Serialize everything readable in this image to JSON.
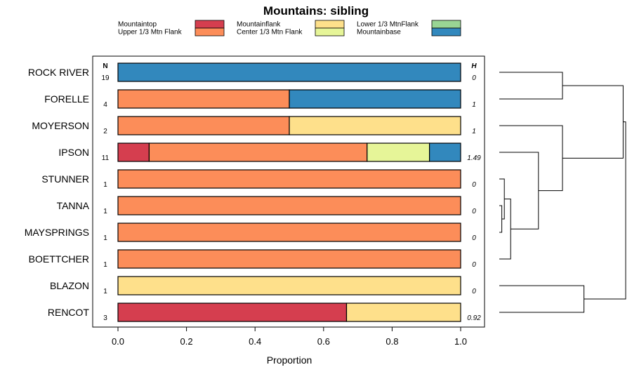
{
  "chart_data": {
    "type": "bar",
    "stacked": true,
    "orientation": "horizontal",
    "title": "Mountains: sibling",
    "xlabel": "Proportion",
    "xlim": [
      0,
      1
    ],
    "xticks": [
      0.0,
      0.2,
      0.4,
      0.6,
      0.8,
      1.0
    ],
    "xtick_labels": [
      "0.0",
      "0.2",
      "0.4",
      "0.6",
      "0.8",
      "1.0"
    ],
    "n_header": "N",
    "h_header": "H",
    "legend_position": "top",
    "series": [
      {
        "name": "Mountaintop",
        "color": "#d53e4f"
      },
      {
        "name": "Upper 1/3 Mtn Flank",
        "color": "#fc8d59"
      },
      {
        "name": "Mountainflank",
        "color": "#fee08b"
      },
      {
        "name": "Center 1/3 Mtn Flank",
        "color": "#e6f598"
      },
      {
        "name": "Lower 1/3 MtnFlank",
        "color": "#99d594"
      },
      {
        "name": "Mountainbase",
        "color": "#3288bd"
      }
    ],
    "legend_order": [
      "Mountaintop",
      "Upper 1/3 Mtn Flank",
      "Mountainflank",
      "Center 1/3 Mtn Flank",
      "Lower 1/3 MtnFlank",
      "Mountainbase"
    ],
    "rows": [
      {
        "name": "ROCK RIVER",
        "n": "19",
        "h": "0",
        "segments": [
          {
            "series": "Mountainbase",
            "value": 1.0
          }
        ]
      },
      {
        "name": "FORELLE",
        "n": "4",
        "h": "1",
        "segments": [
          {
            "series": "Upper 1/3 Mtn Flank",
            "value": 0.5
          },
          {
            "series": "Mountainbase",
            "value": 0.5
          }
        ]
      },
      {
        "name": "MOYERSON",
        "n": "2",
        "h": "1",
        "segments": [
          {
            "series": "Upper 1/3 Mtn Flank",
            "value": 0.5
          },
          {
            "series": "Mountainflank",
            "value": 0.5
          }
        ]
      },
      {
        "name": "IPSON",
        "n": "11",
        "h": "1.49",
        "segments": [
          {
            "series": "Mountaintop",
            "value": 0.091
          },
          {
            "series": "Upper 1/3 Mtn Flank",
            "value": 0.636
          },
          {
            "series": "Center 1/3 Mtn Flank",
            "value": 0.182
          },
          {
            "series": "Mountainbase",
            "value": 0.091
          }
        ]
      },
      {
        "name": "STUNNER",
        "n": "1",
        "h": "0",
        "segments": [
          {
            "series": "Upper 1/3 Mtn Flank",
            "value": 1.0
          }
        ]
      },
      {
        "name": "TANNA",
        "n": "1",
        "h": "0",
        "segments": [
          {
            "series": "Upper 1/3 Mtn Flank",
            "value": 1.0
          }
        ]
      },
      {
        "name": "MAYSPRINGS",
        "n": "1",
        "h": "0",
        "segments": [
          {
            "series": "Upper 1/3 Mtn Flank",
            "value": 1.0
          }
        ]
      },
      {
        "name": "BOETTCHER",
        "n": "1",
        "h": "0",
        "segments": [
          {
            "series": "Upper 1/3 Mtn Flank",
            "value": 1.0
          }
        ]
      },
      {
        "name": "BLAZON",
        "n": "1",
        "h": "0",
        "segments": [
          {
            "series": "Mountainflank",
            "value": 1.0
          }
        ]
      },
      {
        "name": "RENCOT",
        "n": "3",
        "h": "0.92",
        "segments": [
          {
            "series": "Mountaintop",
            "value": 0.667
          },
          {
            "series": "Mountainflank",
            "value": 0.333
          }
        ]
      }
    ],
    "dendrogram": {
      "merges": [
        {
          "a": "TANNA",
          "b": "MAYSPRINGS",
          "height": 0.02
        },
        {
          "a": "STUNNER",
          "b": "TANNA+MAYSPRINGS",
          "height": 0.04
        },
        {
          "a": "BOETTCHER",
          "b": "STUNNER+TANNA+MAYSPRINGS",
          "height": 0.09
        },
        {
          "a": "ROCK RIVER",
          "b": "FORELLE",
          "height": 0.5
        },
        {
          "a": "IPSON",
          "b": "BOETTCHER-group",
          "height": 0.31
        },
        {
          "a": "MOYERSON",
          "b": "IPSON-group",
          "height": 0.5
        },
        {
          "a": "BLAZON",
          "b": "RENCOT",
          "height": 0.67
        },
        {
          "a": "MOYERSON-group",
          "b": "ROCK RIVER-group",
          "height": 0.98
        },
        {
          "a": "all-upper",
          "b": "BLAZON-group",
          "height": 1.0
        }
      ]
    }
  }
}
